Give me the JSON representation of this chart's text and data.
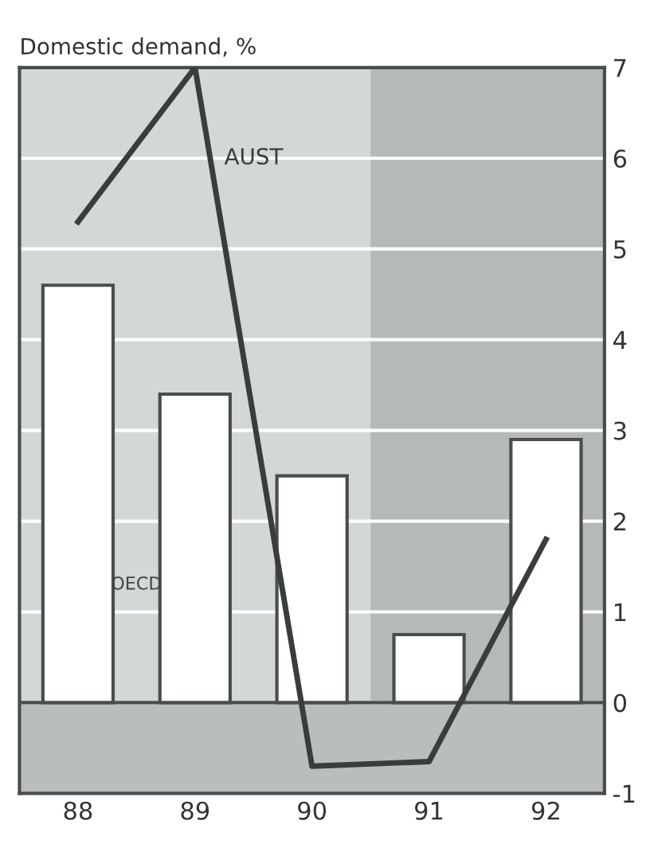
{
  "chart_data": {
    "type": "bar",
    "title": "Domestic demand, %",
    "categories": [
      "88",
      "89",
      "90",
      "91",
      "92"
    ],
    "series": [
      {
        "name": "OECD",
        "color": "#ffffff",
        "values": [
          4.6,
          3.4,
          2.5,
          0.75,
          2.9
        ]
      },
      {
        "name": "AUST",
        "type": "line",
        "color": "#3a3d3d",
        "values": [
          5.3,
          7.0,
          -0.7,
          -0.65,
          1.8
        ]
      }
    ],
    "ylim": [
      -1,
      7
    ],
    "yticks": [
      {
        "value": -1,
        "label": "-1"
      },
      0,
      1,
      2,
      3,
      4,
      5,
      6,
      7
    ],
    "grid": "y",
    "bands": [
      {
        "axis": "x",
        "from": "91",
        "to": "92",
        "color": "#b5b9b8"
      },
      {
        "axis": "y",
        "from": -1,
        "to": 0,
        "color": "#b9bdbc"
      }
    ],
    "legend": false,
    "marker": "none",
    "line_style": "solid"
  }
}
